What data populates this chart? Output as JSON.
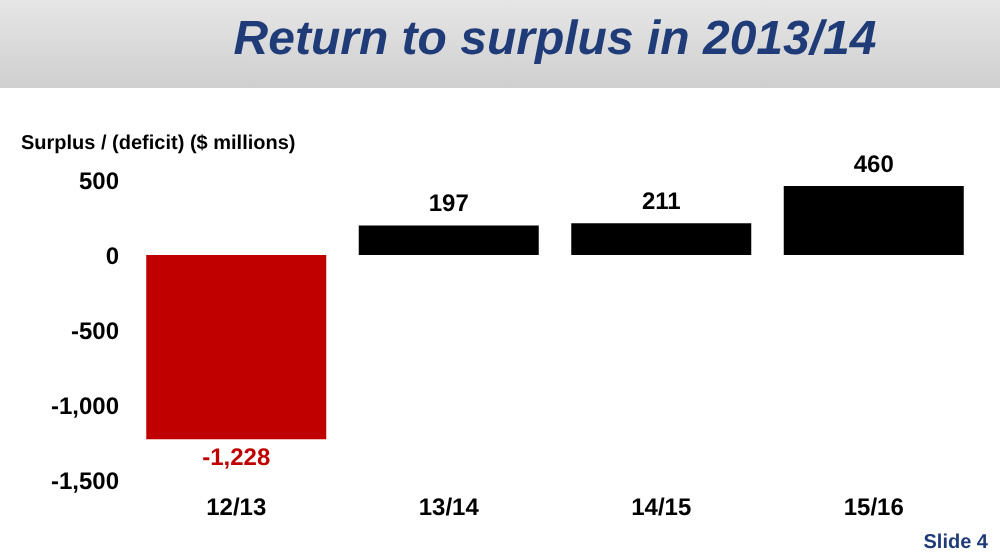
{
  "chart_data": {
    "type": "bar",
    "title": "Return to surplus in 2013/14",
    "ylabel": "Surplus / (deficit) ($ millions)",
    "categories": [
      "12/13",
      "13/14",
      "14/15",
      "15/16"
    ],
    "values": [
      -1228,
      197,
      211,
      460
    ],
    "colors": [
      "#c00000",
      "#000000",
      "#000000",
      "#000000"
    ],
    "value_labels": [
      "-1,228",
      "197",
      "211",
      "460"
    ],
    "ylim": [
      -1500,
      500
    ],
    "yticks": [
      {
        "value": -1500,
        "label": "-1,500"
      },
      {
        "value": -1000,
        "label": "-1,000"
      },
      -500,
      0,
      500
    ],
    "grid": false,
    "annotations": [
      "Slide 4"
    ]
  }
}
